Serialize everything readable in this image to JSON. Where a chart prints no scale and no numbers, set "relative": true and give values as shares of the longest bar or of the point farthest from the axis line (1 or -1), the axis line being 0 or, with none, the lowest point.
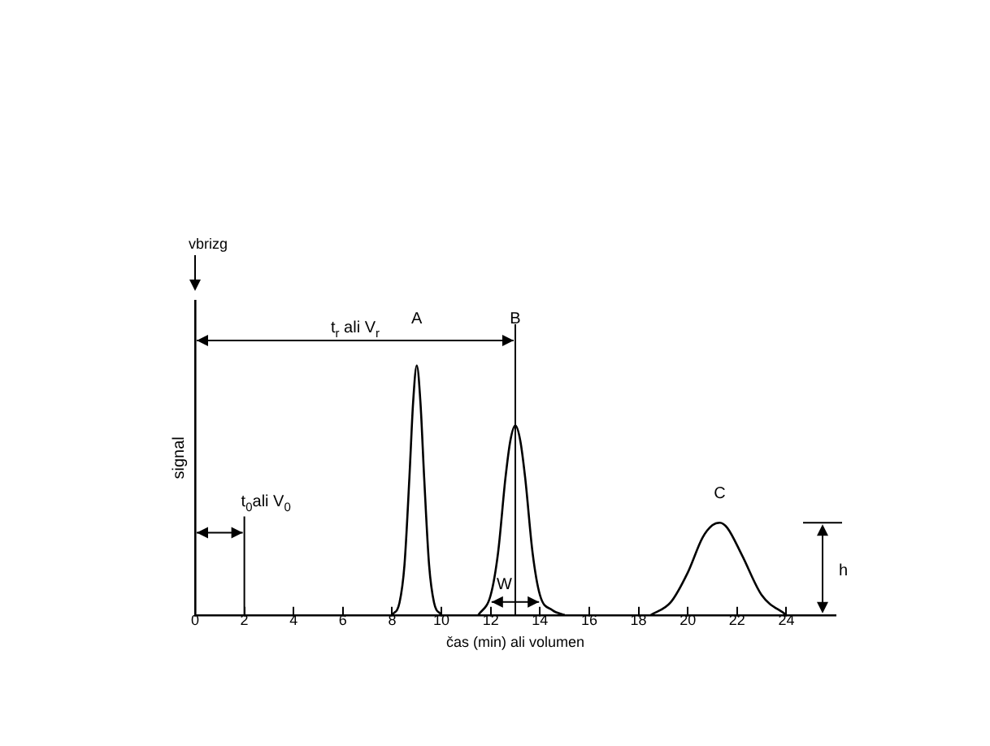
{
  "chart_data": {
    "type": "line",
    "xlabel": "čas (min) ali volumen",
    "ylabel": "signal",
    "relative": true,
    "xlim": [
      0,
      26
    ],
    "xticks": [
      0,
      2,
      4,
      6,
      8,
      10,
      12,
      14,
      16,
      18,
      20,
      22,
      24
    ],
    "grid": false,
    "marker": "none",
    "tick_labels": "x",
    "series": [
      {
        "color": "#000000",
        "x": [
          8.0,
          8.3,
          8.5,
          8.7,
          8.85,
          9.0,
          9.15,
          9.3,
          9.5,
          9.7,
          10.0
        ],
        "values": [
          0,
          0.05,
          0.2,
          0.55,
          0.85,
          1,
          0.85,
          0.55,
          0.2,
          0.05,
          0
        ]
      },
      {
        "color": "#000000",
        "x": [
          11.5,
          12.0,
          12.3,
          12.6,
          12.8,
          13.0,
          13.2,
          13.4,
          13.7,
          14.0,
          14.5,
          15.0
        ],
        "values": [
          0,
          0.08,
          0.25,
          0.55,
          0.7,
          0.76,
          0.7,
          0.55,
          0.25,
          0.08,
          0.02,
          0
        ]
      },
      {
        "color": "#000000",
        "x": [
          18.5,
          19.3,
          20.0,
          20.6,
          21.0,
          21.3,
          21.6,
          22.2,
          23.0,
          24.0
        ],
        "values": [
          0,
          0.05,
          0.17,
          0.31,
          0.36,
          0.37,
          0.35,
          0.24,
          0.08,
          0
        ]
      }
    ],
    "ref_lines": [
      {
        "axis": "x",
        "value": 2,
        "label": "t$_{0}$ali V$_{0}$"
      },
      {
        "axis": "x",
        "value": 13
      }
    ],
    "annotations": [
      "vbrizg",
      "t$_{r}$ ali V$_{r}$",
      "A",
      "B",
      "C",
      "W",
      "h"
    ]
  }
}
